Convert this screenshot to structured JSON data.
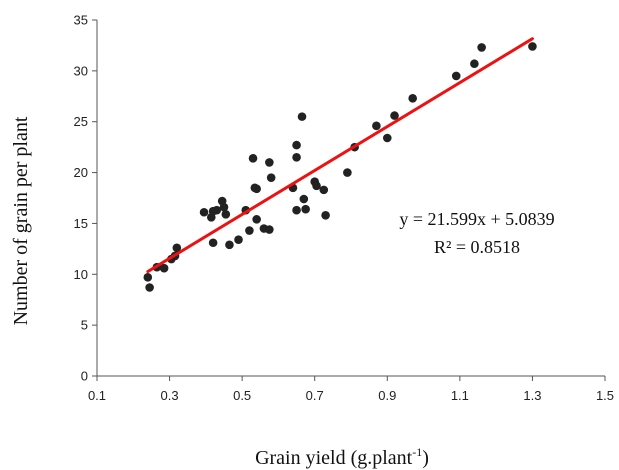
{
  "chart_data": {
    "type": "scatter",
    "xlabel": "Grain yield (g.plant",
    "xlabel_sup": "-1",
    "xlabel_close": ")",
    "ylabel": "Number of grain per plant",
    "xlim": [
      0.1,
      1.5
    ],
    "ylim": [
      0,
      35
    ],
    "xticks": [
      0.1,
      0.3,
      0.5,
      0.7,
      0.9,
      1.1,
      1.3,
      1.5
    ],
    "yticks": [
      0,
      5,
      10,
      15,
      20,
      25,
      30,
      35
    ],
    "grid": false,
    "legend": false,
    "point_color": "#222222",
    "trendline": {
      "color": "#ee1111",
      "slope": 21.599,
      "intercept": 5.0839,
      "x_range": [
        0.24,
        1.3
      ],
      "equation": "y = 21.599x + 5.0839",
      "r2": "R² = 0.8518"
    },
    "points": [
      [
        0.24,
        9.7
      ],
      [
        0.245,
        8.7
      ],
      [
        0.265,
        10.7
      ],
      [
        0.285,
        10.6
      ],
      [
        0.305,
        11.5
      ],
      [
        0.315,
        11.8
      ],
      [
        0.32,
        12.6
      ],
      [
        0.395,
        16.1
      ],
      [
        0.415,
        15.6
      ],
      [
        0.42,
        16.2
      ],
      [
        0.42,
        13.1
      ],
      [
        0.43,
        16.3
      ],
      [
        0.445,
        17.2
      ],
      [
        0.45,
        16.6
      ],
      [
        0.455,
        15.9
      ],
      [
        0.465,
        12.9
      ],
      [
        0.49,
        13.4
      ],
      [
        0.51,
        16.3
      ],
      [
        0.52,
        14.3
      ],
      [
        0.53,
        21.4
      ],
      [
        0.535,
        18.5
      ],
      [
        0.54,
        18.4
      ],
      [
        0.54,
        15.4
      ],
      [
        0.56,
        14.5
      ],
      [
        0.575,
        14.4
      ],
      [
        0.575,
        21.0
      ],
      [
        0.58,
        19.5
      ],
      [
        0.64,
        18.5
      ],
      [
        0.65,
        22.7
      ],
      [
        0.65,
        21.5
      ],
      [
        0.65,
        16.3
      ],
      [
        0.665,
        25.5
      ],
      [
        0.67,
        17.4
      ],
      [
        0.675,
        16.4
      ],
      [
        0.7,
        19.1
      ],
      [
        0.705,
        18.7
      ],
      [
        0.725,
        18.3
      ],
      [
        0.73,
        15.8
      ],
      [
        0.79,
        20.0
      ],
      [
        0.81,
        22.5
      ],
      [
        0.87,
        24.6
      ],
      [
        0.9,
        23.4
      ],
      [
        0.92,
        25.6
      ],
      [
        0.97,
        27.3
      ],
      [
        1.09,
        29.5
      ],
      [
        1.14,
        30.7
      ],
      [
        1.16,
        32.3
      ],
      [
        1.3,
        32.4
      ]
    ]
  }
}
